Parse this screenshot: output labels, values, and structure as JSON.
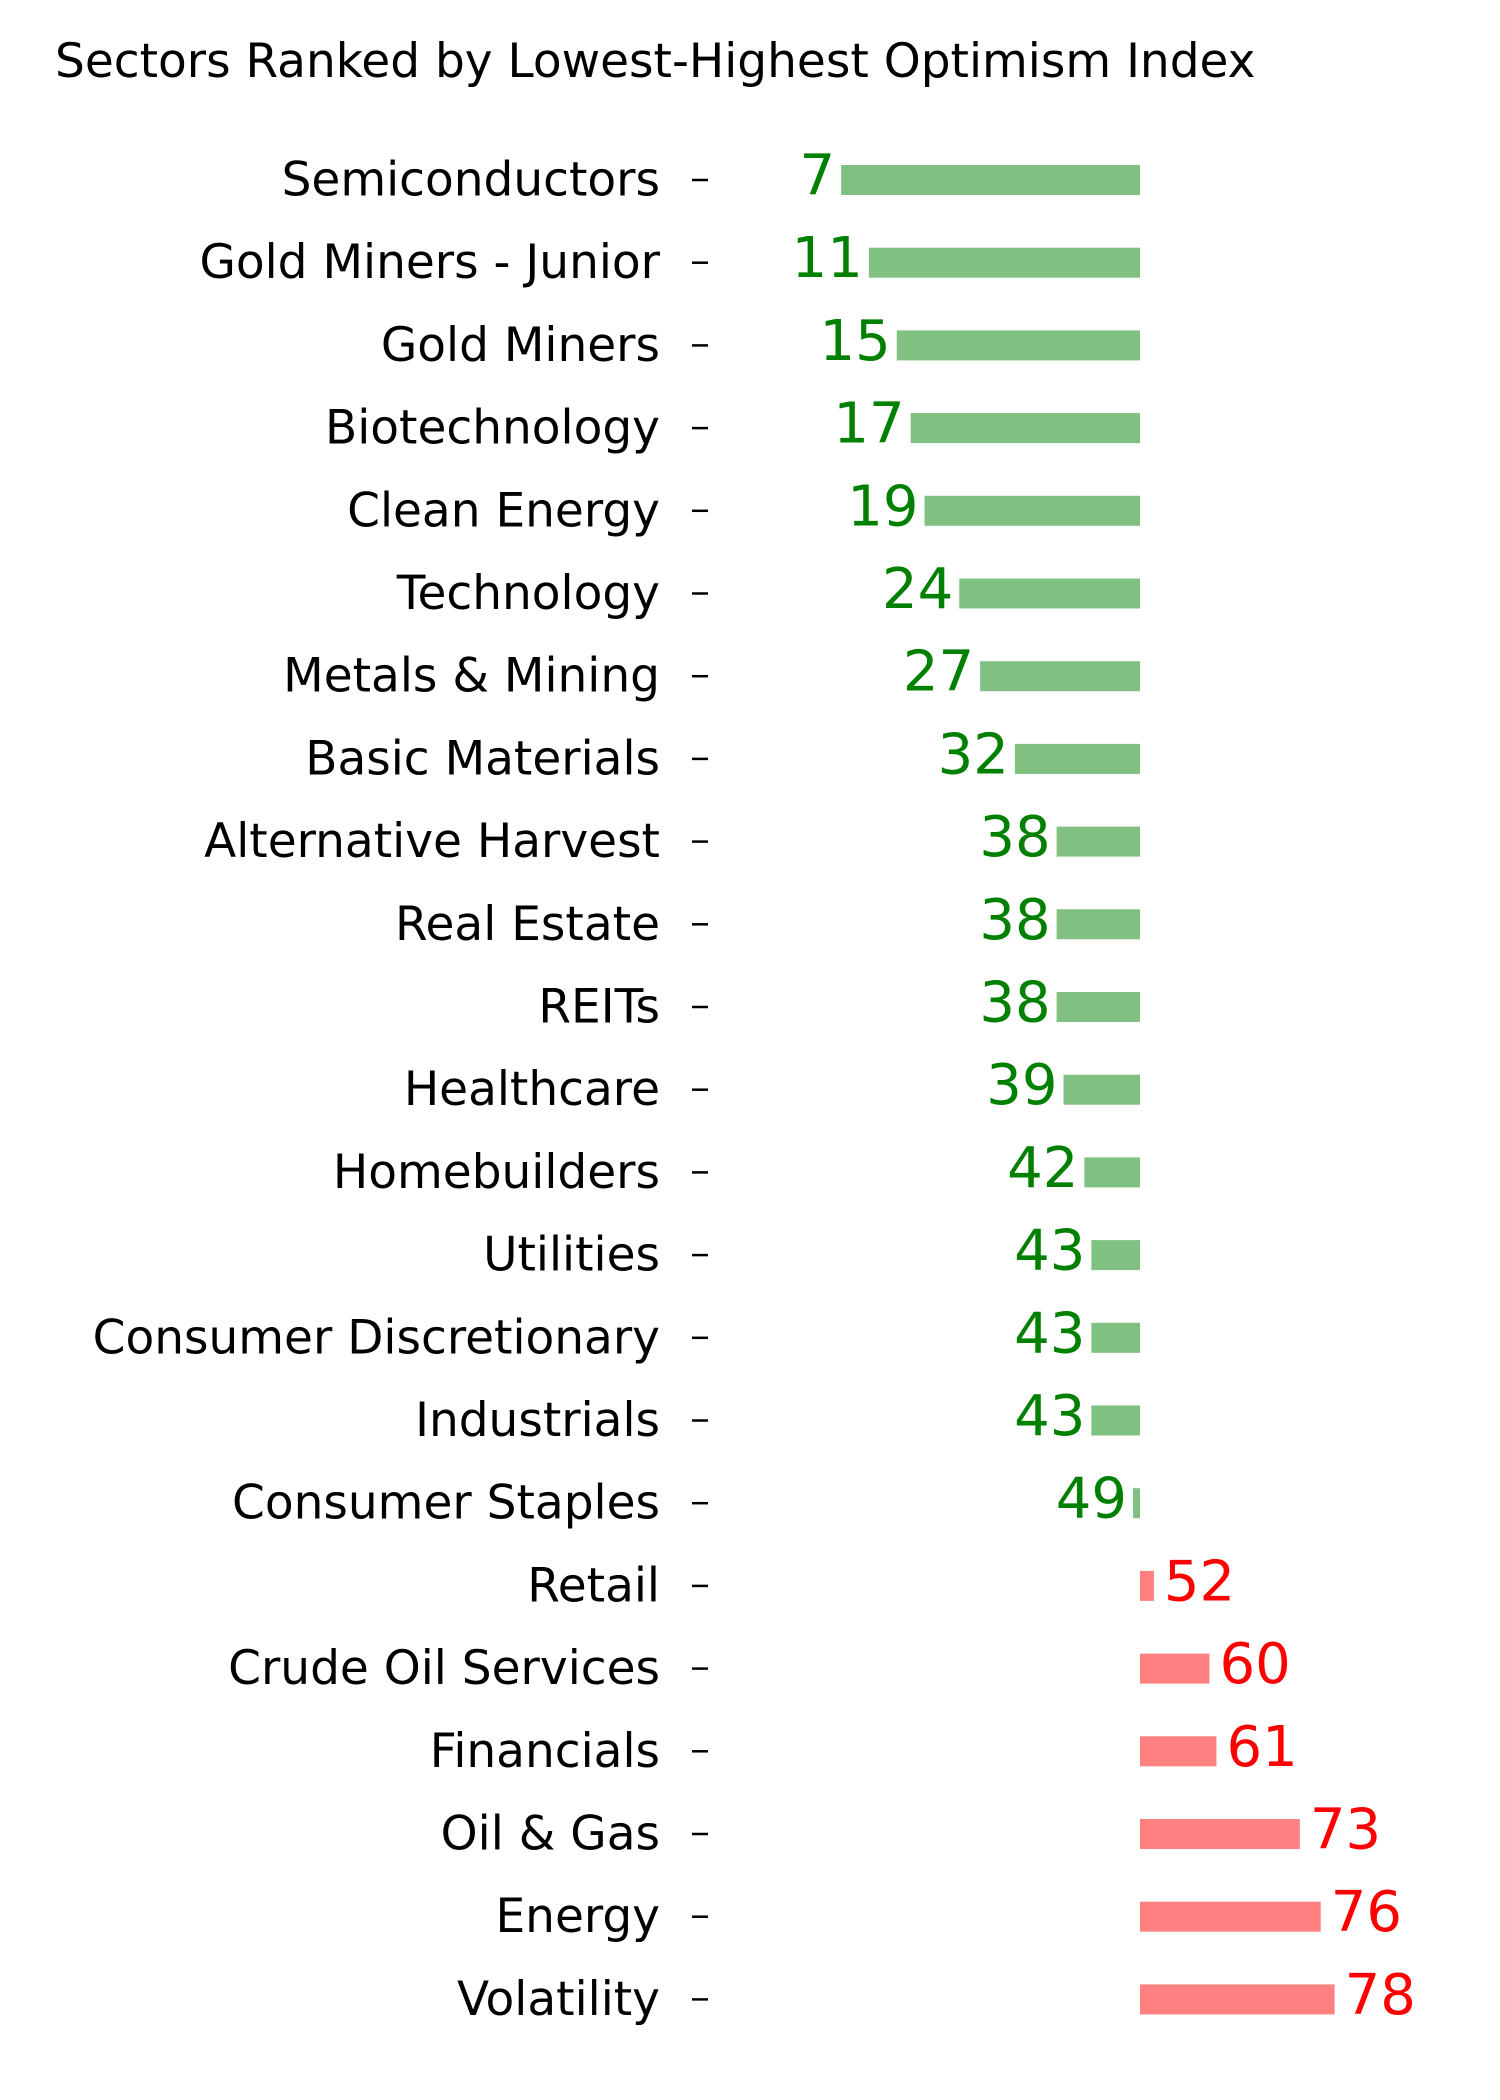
{
  "chart_data": {
    "type": "bar",
    "orientation": "horizontal",
    "title": "Sectors Ranked by Lowest-Highest Optimism Index",
    "baseline": 50,
    "xlim": [
      0,
      100
    ],
    "grid": false,
    "legend": "none",
    "colors": {
      "below_baseline_bar": "#80c080",
      "below_baseline_label": "#008000",
      "above_baseline_bar": "#ff8080",
      "above_baseline_label": "#ff0000"
    },
    "tick_mark": "-",
    "categories": [
      "Semiconductors",
      "Gold Miners - Junior",
      "Gold Miners",
      "Biotechnology",
      "Clean Energy",
      "Technology",
      "Metals & Mining",
      "Basic Materials",
      "Alternative Harvest",
      "Real Estate",
      "REITs",
      "Healthcare",
      "Homebuilders",
      "Utilities",
      "Consumer Discretionary",
      "Industrials",
      "Consumer Staples",
      "Retail",
      "Crude Oil Services",
      "Financials",
      "Oil & Gas",
      "Energy",
      "Volatility"
    ],
    "values": [
      7,
      11,
      15,
      17,
      19,
      24,
      27,
      32,
      38,
      38,
      38,
      39,
      42,
      43,
      43,
      43,
      49,
      52,
      60,
      61,
      73,
      76,
      78
    ],
    "labels": [
      "7",
      "11",
      "15",
      "17",
      "19",
      "24",
      "27",
      "32",
      "38",
      "38",
      "38",
      "39",
      "42",
      "43",
      "43",
      "43",
      "49",
      "52",
      "60",
      "61",
      "73",
      "76",
      "78"
    ]
  }
}
